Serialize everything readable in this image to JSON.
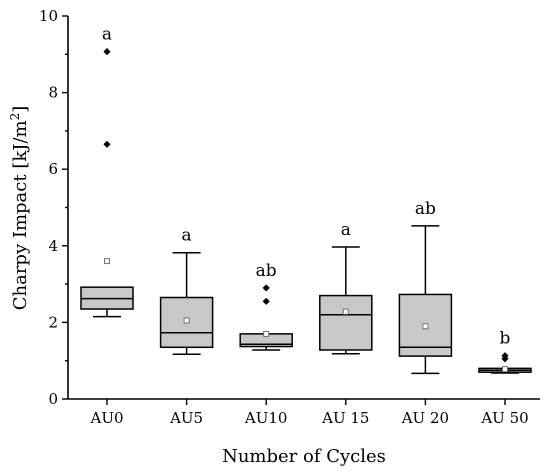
{
  "chart_data": {
    "type": "box",
    "xlabel": "Number of Cycles",
    "ylabel": "Charpy Impact [kJ/m",
    "ylabel_sup": "2",
    "ylabel_end": "]",
    "ylim": [
      0,
      10
    ],
    "yticks": [
      0,
      2,
      4,
      6,
      8,
      10
    ],
    "categories": [
      "AU0",
      "AU5",
      "AU10",
      "AU 15",
      "AU 20",
      "AU 50"
    ],
    "boxes": [
      {
        "label": "AU0",
        "whisker_low": 2.15,
        "q1": 2.35,
        "median": 2.62,
        "q3": 2.92,
        "whisker_high": 2.92,
        "mean": 3.6,
        "outliers": [
          6.65,
          9.07
        ],
        "letter": "a"
      },
      {
        "label": "AU5",
        "whisker_low": 1.17,
        "q1": 1.35,
        "median": 1.73,
        "q3": 2.65,
        "whisker_high": 3.82,
        "mean": 2.05,
        "outliers": [],
        "letter": "a"
      },
      {
        "label": "AU10",
        "whisker_low": 1.28,
        "q1": 1.37,
        "median": 1.43,
        "q3": 1.7,
        "whisker_high": 1.7,
        "mean": 1.7,
        "outliers": [
          2.55,
          2.9
        ],
        "letter": "ab"
      },
      {
        "label": "AU 15",
        "whisker_low": 1.18,
        "q1": 1.28,
        "median": 2.2,
        "q3": 2.7,
        "whisker_high": 3.97,
        "mean": 2.28,
        "outliers": [],
        "letter": "a"
      },
      {
        "label": "AU 20",
        "whisker_low": 0.67,
        "q1": 1.12,
        "median": 1.35,
        "q3": 2.73,
        "whisker_high": 4.52,
        "mean": 1.9,
        "outliers": [],
        "letter": "ab"
      },
      {
        "label": "AU 50",
        "whisker_low": 0.68,
        "q1": 0.7,
        "median": 0.75,
        "q3": 0.8,
        "whisker_high": 0.8,
        "mean": 0.78,
        "outliers": [
          1.05,
          1.13
        ],
        "letter": "b"
      }
    ]
  }
}
